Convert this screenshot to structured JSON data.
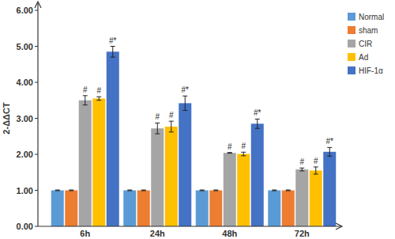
{
  "chart_data": {
    "type": "bar",
    "y_label": "2-ΔΔCT",
    "categories": [
      "6h",
      "24h",
      "48h",
      "72h"
    ],
    "series": [
      {
        "name": "Normal",
        "color": "#5b9bd5",
        "values": [
          1.0,
          1.0,
          1.0,
          1.0
        ],
        "errors": [
          0.01,
          0.01,
          0.01,
          0.01
        ]
      },
      {
        "name": "sham",
        "color": "#ed7d31",
        "values": [
          1.0,
          1.0,
          1.0,
          1.0
        ],
        "errors": [
          0.01,
          0.01,
          0.01,
          0.01
        ]
      },
      {
        "name": "CIR",
        "color": "#a5a5a5",
        "values": [
          3.5,
          2.72,
          2.04,
          1.58
        ],
        "errors": [
          0.13,
          0.15,
          0.01,
          0.04
        ],
        "annotations": [
          "#",
          "#",
          "#",
          "#"
        ]
      },
      {
        "name": "Ad",
        "color": "#ffc000",
        "values": [
          3.55,
          2.77,
          2.01,
          1.55
        ],
        "errors": [
          0.05,
          0.15,
          0.05,
          0.1
        ],
        "annotations": [
          "#",
          "#",
          "#",
          "#"
        ]
      },
      {
        "name": "HIF-1α",
        "color": "#4472c4",
        "values": [
          4.85,
          3.42,
          2.85,
          2.07
        ],
        "errors": [
          0.15,
          0.2,
          0.13,
          0.12
        ],
        "annotations": [
          "#*",
          "#*",
          "#*",
          "#*"
        ]
      }
    ],
    "ylim": [
      0,
      6
    ],
    "yticks": [
      {
        "value": 0,
        "label": "0.00"
      },
      {
        "value": 1,
        "label": "1.00"
      },
      {
        "value": 2,
        "label": "2.00"
      },
      {
        "value": 3,
        "label": "3.00"
      },
      {
        "value": 4,
        "label": "4.00"
      },
      {
        "value": 5,
        "label": "5.00"
      },
      {
        "value": 6,
        "label": "6.00"
      }
    ],
    "legend": "right",
    "grid": false
  }
}
